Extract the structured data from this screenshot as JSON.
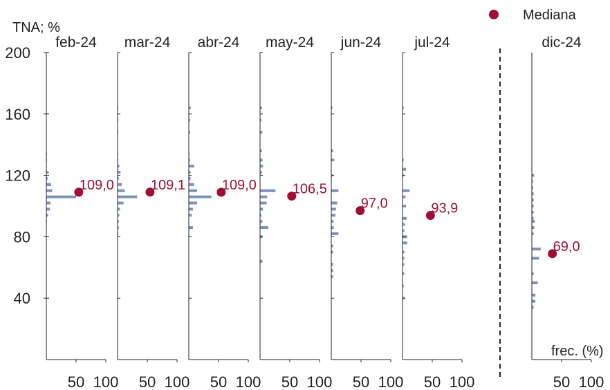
{
  "chart_data": {
    "type": "histogram-panels",
    "ylabel": "TNA; %",
    "xlabel": "frec. (%)",
    "ylim": [
      0,
      200
    ],
    "yticks": [
      "40",
      "80",
      "120",
      "160",
      "200"
    ],
    "ytick_values": [
      40,
      80,
      120,
      160,
      200
    ],
    "xlim": [
      0,
      100
    ],
    "xtick_values": [
      50,
      100
    ],
    "xtick_labels": [
      "50",
      "100"
    ],
    "legend": {
      "label": "Mediana",
      "placement": "top-right"
    },
    "colors": {
      "bars": "#7f92bc",
      "median": "#9e0e35",
      "axis": "#222222",
      "separator": "#222222"
    },
    "separator": "dashed-vertical-before-last-panel",
    "panels": [
      {
        "name": "feb-24",
        "median": 109.0,
        "median_label": "109,0",
        "bins": [
          {
            "y": 134,
            "f": 0.5
          },
          {
            "y": 130,
            "f": 0.5
          },
          {
            "y": 122,
            "f": 4
          },
          {
            "y": 118,
            "f": 2
          },
          {
            "y": 114,
            "f": 8
          },
          {
            "y": 110,
            "f": 10
          },
          {
            "y": 106,
            "f": 50
          },
          {
            "y": 102,
            "f": 7
          },
          {
            "y": 98,
            "f": 6
          },
          {
            "y": 94,
            "f": 3
          },
          {
            "y": 90,
            "f": 1
          }
        ]
      },
      {
        "name": "mar-24",
        "median": 109.1,
        "median_label": "109,1",
        "bins": [
          {
            "y": 164,
            "f": 1
          },
          {
            "y": 156,
            "f": 1
          },
          {
            "y": 148,
            "f": 1
          },
          {
            "y": 134,
            "f": 1
          },
          {
            "y": 130,
            "f": 1
          },
          {
            "y": 126,
            "f": 3
          },
          {
            "y": 122,
            "f": 5
          },
          {
            "y": 118,
            "f": 2
          },
          {
            "y": 114,
            "f": 7
          },
          {
            "y": 110,
            "f": 12
          },
          {
            "y": 106,
            "f": 33
          },
          {
            "y": 102,
            "f": 10
          },
          {
            "y": 98,
            "f": 4
          },
          {
            "y": 94,
            "f": 3
          },
          {
            "y": 90,
            "f": 2
          },
          {
            "y": 86,
            "f": 2
          },
          {
            "y": 82,
            "f": 1
          }
        ]
      },
      {
        "name": "abr-24",
        "median": 109.0,
        "median_label": "109,0",
        "bins": [
          {
            "y": 164,
            "f": 3
          },
          {
            "y": 156,
            "f": 2
          },
          {
            "y": 148,
            "f": 2
          },
          {
            "y": 134,
            "f": 1
          },
          {
            "y": 130,
            "f": 2
          },
          {
            "y": 126,
            "f": 9
          },
          {
            "y": 122,
            "f": 3
          },
          {
            "y": 118,
            "f": 3
          },
          {
            "y": 114,
            "f": 9
          },
          {
            "y": 110,
            "f": 14
          },
          {
            "y": 106,
            "f": 38
          },
          {
            "y": 102,
            "f": 14
          },
          {
            "y": 98,
            "f": 7
          },
          {
            "y": 94,
            "f": 5
          },
          {
            "y": 86,
            "f": 7
          }
        ]
      },
      {
        "name": "may-24",
        "median": 106.5,
        "median_label": "106,5",
        "bins": [
          {
            "y": 164,
            "f": 3
          },
          {
            "y": 156,
            "f": 2
          },
          {
            "y": 148,
            "f": 4
          },
          {
            "y": 136,
            "f": 3
          },
          {
            "y": 130,
            "f": 4
          },
          {
            "y": 126,
            "f": 5
          },
          {
            "y": 122,
            "f": 3
          },
          {
            "y": 110,
            "f": 26
          },
          {
            "y": 106,
            "f": 12
          },
          {
            "y": 102,
            "f": 11
          },
          {
            "y": 98,
            "f": 5
          },
          {
            "y": 94,
            "f": 2
          },
          {
            "y": 90,
            "f": 4
          },
          {
            "y": 86,
            "f": 14
          },
          {
            "y": 80,
            "f": 4
          },
          {
            "y": 64,
            "f": 4
          }
        ]
      },
      {
        "name": "jun-24",
        "median": 97.0,
        "median_label": "97,0",
        "bins": [
          {
            "y": 164,
            "f": 2
          },
          {
            "y": 136,
            "f": 3
          },
          {
            "y": 130,
            "f": 5
          },
          {
            "y": 120,
            "f": 2
          },
          {
            "y": 110,
            "f": 12
          },
          {
            "y": 102,
            "f": 10
          },
          {
            "y": 98,
            "f": 8
          },
          {
            "y": 94,
            "f": 7
          },
          {
            "y": 90,
            "f": 4
          },
          {
            "y": 86,
            "f": 4
          },
          {
            "y": 82,
            "f": 12
          },
          {
            "y": 74,
            "f": 3
          },
          {
            "y": 70,
            "f": 3
          },
          {
            "y": 62,
            "f": 3
          },
          {
            "y": 58,
            "f": 3
          },
          {
            "y": 54,
            "f": 3
          }
        ]
      },
      {
        "name": "jul-24",
        "median": 93.9,
        "median_label": "93,9",
        "bins": [
          {
            "y": 164,
            "f": 2
          },
          {
            "y": 130,
            "f": 2
          },
          {
            "y": 124,
            "f": 6
          },
          {
            "y": 120,
            "f": 2
          },
          {
            "y": 110,
            "f": 12
          },
          {
            "y": 106,
            "f": 5
          },
          {
            "y": 100,
            "f": 6
          },
          {
            "y": 92,
            "f": 7
          },
          {
            "y": 88,
            "f": 4
          },
          {
            "y": 84,
            "f": 3
          },
          {
            "y": 80,
            "f": 8
          },
          {
            "y": 76,
            "f": 8
          },
          {
            "y": 70,
            "f": 3
          },
          {
            "y": 66,
            "f": 3
          },
          {
            "y": 62,
            "f": 3
          },
          {
            "y": 56,
            "f": 3
          },
          {
            "y": 48,
            "f": 2
          },
          {
            "y": 40,
            "f": 3
          }
        ]
      },
      {
        "name": "dic-24",
        "median": 69.0,
        "median_label": "69,0",
        "bins": [
          {
            "y": 120,
            "f": 4
          },
          {
            "y": 116,
            "f": 2
          },
          {
            "y": 112,
            "f": 2
          },
          {
            "y": 108,
            "f": 3
          },
          {
            "y": 104,
            "f": 3
          },
          {
            "y": 100,
            "f": 3
          },
          {
            "y": 96,
            "f": 3
          },
          {
            "y": 92,
            "f": 3
          },
          {
            "y": 90,
            "f": 5
          },
          {
            "y": 86,
            "f": 4
          },
          {
            "y": 82,
            "f": 3
          },
          {
            "y": 72,
            "f": 15
          },
          {
            "y": 66,
            "f": 12
          },
          {
            "y": 56,
            "f": 3
          },
          {
            "y": 50,
            "f": 10
          },
          {
            "y": 42,
            "f": 6
          },
          {
            "y": 38,
            "f": 6
          },
          {
            "y": 34,
            "f": 3
          }
        ]
      }
    ]
  }
}
